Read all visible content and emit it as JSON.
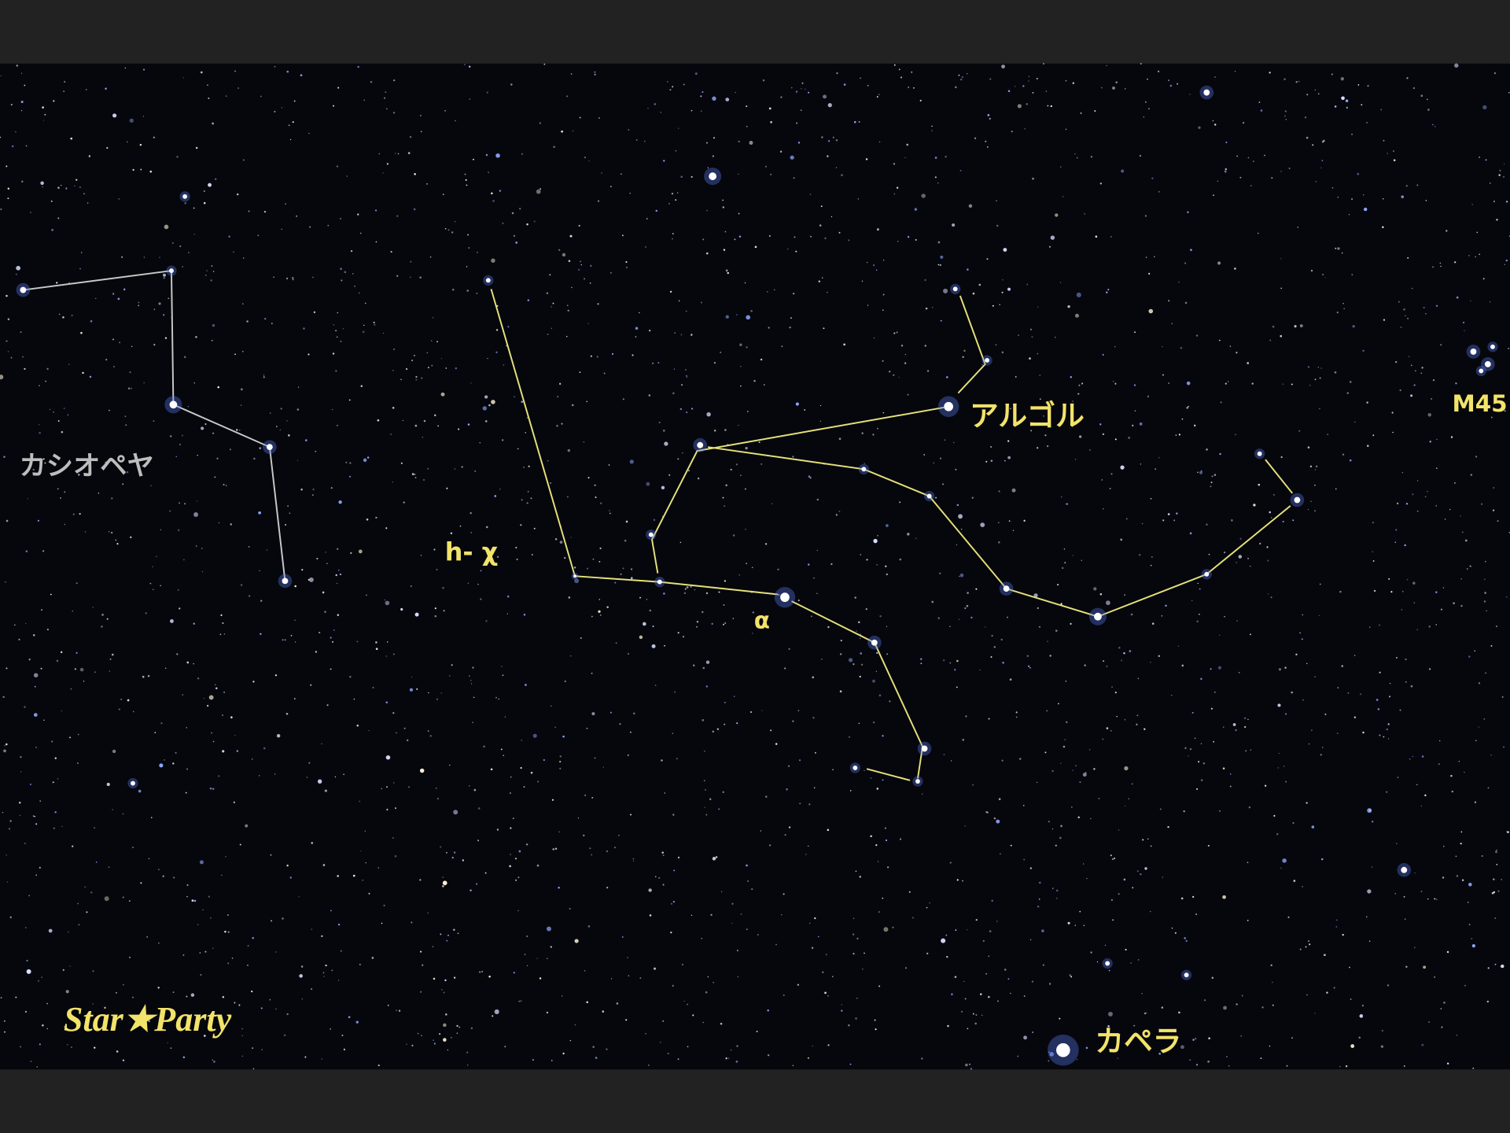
{
  "labels": {
    "cassiopeia": "カシオペヤ",
    "h_chi": "h- χ",
    "alpha": "α",
    "algol": "アルゴル",
    "m45": "M45",
    "capella": "カペラ"
  },
  "logo": "Star★Party"
}
